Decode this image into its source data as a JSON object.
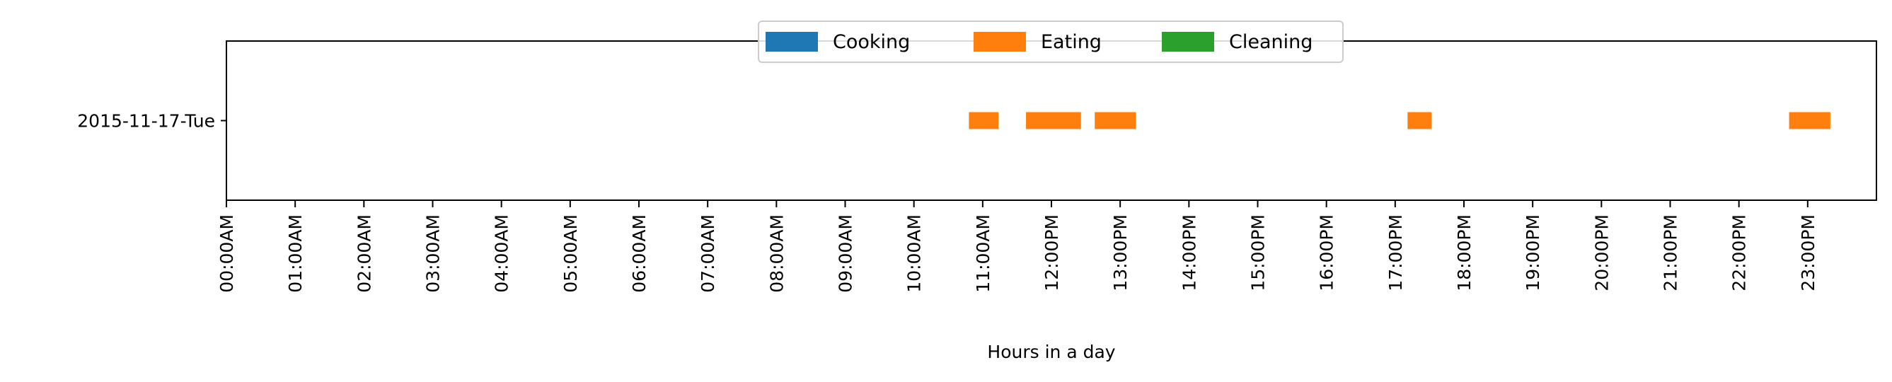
{
  "chart_data": {
    "type": "bar",
    "orientation": "horizontal-timeline",
    "title": "",
    "xlabel": "Hours in a day",
    "ylabel": "",
    "xlim": [
      0,
      24
    ],
    "x_ticks": [
      {
        "value": 0,
        "label": "00:00AM"
      },
      {
        "value": 1,
        "label": "01:00AM"
      },
      {
        "value": 2,
        "label": "02:00AM"
      },
      {
        "value": 3,
        "label": "03:00AM"
      },
      {
        "value": 4,
        "label": "04:00AM"
      },
      {
        "value": 5,
        "label": "05:00AM"
      },
      {
        "value": 6,
        "label": "06:00AM"
      },
      {
        "value": 7,
        "label": "07:00AM"
      },
      {
        "value": 8,
        "label": "08:00AM"
      },
      {
        "value": 9,
        "label": "09:00AM"
      },
      {
        "value": 10,
        "label": "10:00AM"
      },
      {
        "value": 11,
        "label": "11:00AM"
      },
      {
        "value": 12,
        "label": "12:00PM"
      },
      {
        "value": 13,
        "label": "13:00PM"
      },
      {
        "value": 14,
        "label": "14:00PM"
      },
      {
        "value": 15,
        "label": "15:00PM"
      },
      {
        "value": 16,
        "label": "16:00PM"
      },
      {
        "value": 17,
        "label": "17:00PM"
      },
      {
        "value": 18,
        "label": "18:00PM"
      },
      {
        "value": 19,
        "label": "19:00PM"
      },
      {
        "value": 20,
        "label": "20:00PM"
      },
      {
        "value": 21,
        "label": "21:00PM"
      },
      {
        "value": 22,
        "label": "22:00PM"
      },
      {
        "value": 23,
        "label": "23:00PM"
      }
    ],
    "categories": [
      "2015-11-17-Tue"
    ],
    "legend_placement": "top-center",
    "grid": false,
    "series": [
      {
        "name": "Cooking",
        "color": "#1f77b4",
        "intervals": []
      },
      {
        "name": "Eating",
        "color": "#ff7f0e",
        "intervals": [
          {
            "category": "2015-11-17-Tue",
            "start": 10.8,
            "end": 11.23
          },
          {
            "category": "2015-11-17-Tue",
            "start": 11.63,
            "end": 12.43
          },
          {
            "category": "2015-11-17-Tue",
            "start": 12.63,
            "end": 13.23
          },
          {
            "category": "2015-11-17-Tue",
            "start": 17.18,
            "end": 17.53
          },
          {
            "category": "2015-11-17-Tue",
            "start": 22.73,
            "end": 23.33
          }
        ]
      },
      {
        "name": "Cleaning",
        "color": "#2ca02c",
        "intervals": []
      }
    ]
  }
}
